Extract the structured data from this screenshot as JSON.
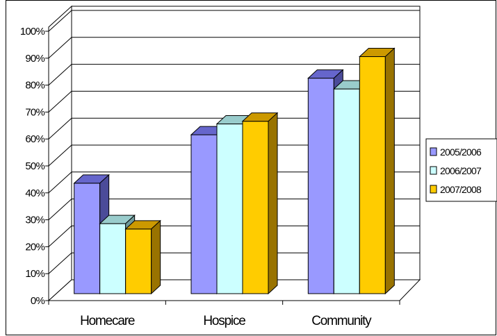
{
  "chart_data": {
    "type": "bar",
    "style": "3d-clustered-column",
    "categories": [
      "Homecare",
      "Hospice",
      "Community"
    ],
    "series": [
      {
        "name": "2005/2006",
        "values": [
          41,
          59,
          80
        ],
        "color": "#9999FF",
        "top_color": "#6666CC",
        "side_color": "#4B4B99"
      },
      {
        "name": "2006/2007",
        "values": [
          26,
          63,
          76
        ],
        "color": "#CCFFFF",
        "top_color": "#99CCCC",
        "side_color": "#6F9999"
      },
      {
        "name": "2007/2008",
        "values": [
          24,
          64,
          88
        ],
        "color": "#FFCC00",
        "top_color": "#CC9900",
        "side_color": "#997300"
      }
    ],
    "ylim": [
      0,
      100
    ],
    "yticks": [
      "0%",
      "10%",
      "20%",
      "30%",
      "40%",
      "50%",
      "60%",
      "70%",
      "80%",
      "90%",
      "100%"
    ],
    "grid": true,
    "legend_position": "right",
    "title": "",
    "xlabel": "",
    "ylabel": ""
  }
}
